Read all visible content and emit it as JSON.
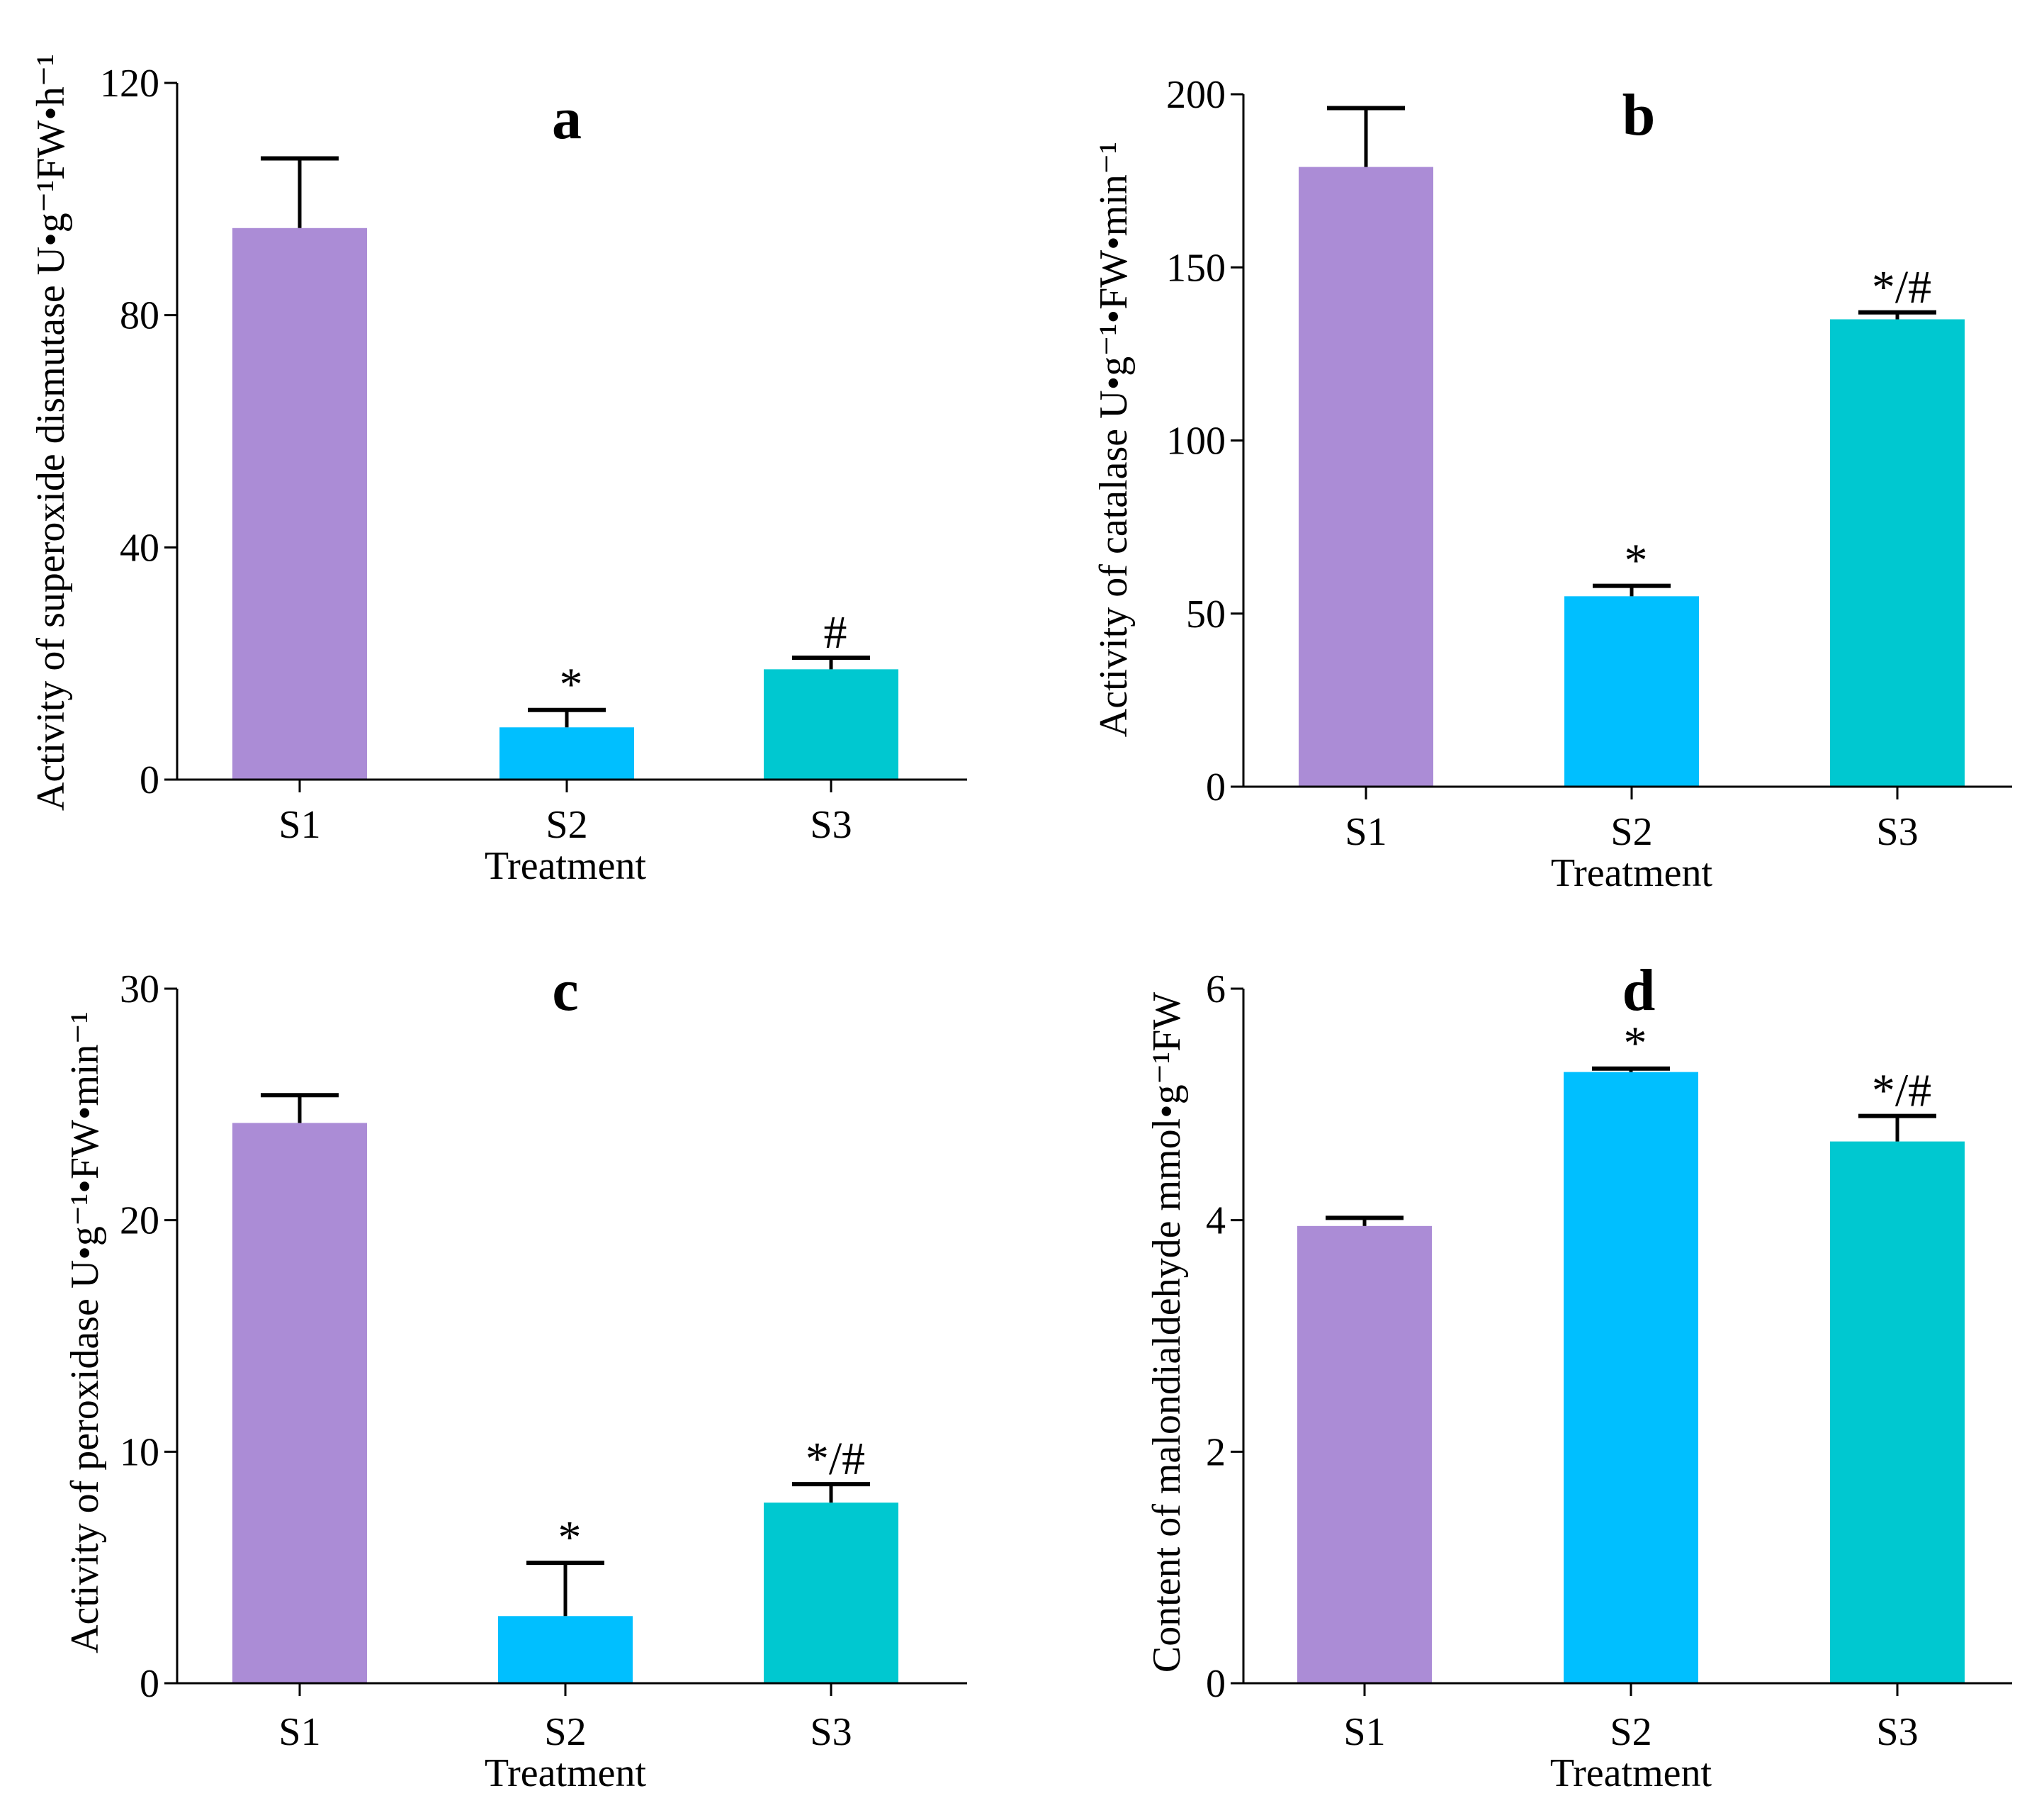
{
  "figure": {
    "chart_data": [
      {
        "type": "bar",
        "panel": "a",
        "title": "a",
        "xlabel": "Treatment",
        "ylabel": "Activity of superoxide dismutase U•g⁻¹FW•h⁻¹",
        "categories": [
          "S1",
          "S2",
          "S3"
        ],
        "values": [
          95,
          9,
          19
        ],
        "errors": [
          12,
          3,
          2
        ],
        "significance": [
          "",
          "*",
          "#"
        ],
        "ylim": [
          0,
          120
        ],
        "yticks": [
          0,
          40,
          80,
          120
        ],
        "colors": [
          "#ab8cd6",
          "#00bfff",
          "#00c8d0"
        ]
      },
      {
        "type": "bar",
        "panel": "b",
        "title": "b",
        "xlabel": "Treatment",
        "ylabel": "Activity of catalase U•g⁻¹•FW•min⁻¹",
        "categories": [
          "S1",
          "S2",
          "S3"
        ],
        "values": [
          179,
          55,
          135
        ],
        "errors": [
          17,
          3,
          2
        ],
        "significance": [
          "",
          "*",
          "*/#"
        ],
        "ylim": [
          0,
          200
        ],
        "yticks": [
          0,
          50,
          100,
          150,
          200
        ],
        "colors": [
          "#ab8cd6",
          "#00bfff",
          "#00c8d0"
        ]
      },
      {
        "type": "bar",
        "panel": "c",
        "title": "c",
        "xlabel": "Treatment",
        "ylabel": "Activity of peroxidase U•g⁻¹•FW•min⁻¹",
        "categories": [
          "S1",
          "S2",
          "S3"
        ],
        "values": [
          24.2,
          2.9,
          7.8
        ],
        "errors": [
          1.2,
          2.3,
          0.8
        ],
        "significance": [
          "",
          "*",
          "*/#"
        ],
        "ylim": [
          0,
          30
        ],
        "yticks": [
          0,
          10,
          20,
          30
        ],
        "colors": [
          "#ab8cd6",
          "#00bfff",
          "#00c8d0"
        ]
      },
      {
        "type": "bar",
        "panel": "d",
        "title": "d",
        "xlabel": "Treatment",
        "ylabel": "Content of malondialdehyde mmol•g⁻¹FW",
        "categories": [
          "S1",
          "S2",
          "S3"
        ],
        "values": [
          3.95,
          5.28,
          4.68
        ],
        "errors": [
          0.07,
          0.03,
          0.22
        ],
        "significance": [
          "",
          "*",
          "*/#"
        ],
        "ylim": [
          0,
          6
        ],
        "yticks": [
          0,
          2,
          4,
          6
        ],
        "colors": [
          "#ab8cd6",
          "#00bfff",
          "#00c8d0"
        ]
      }
    ]
  }
}
